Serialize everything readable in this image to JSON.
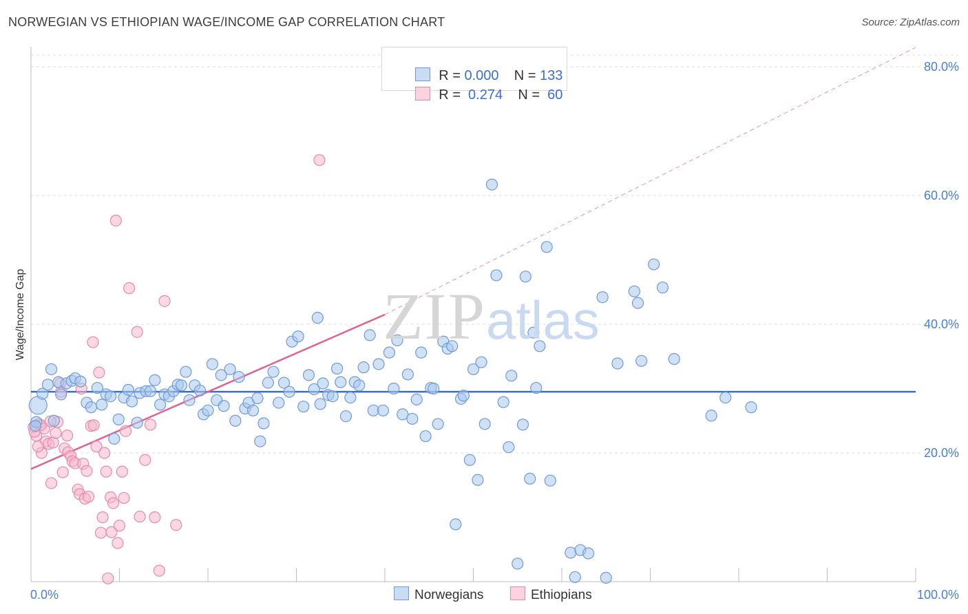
{
  "title": "NORWEGIAN VS ETHIOPIAN WAGE/INCOME GAP CORRELATION CHART",
  "source": "Source: ZipAtlas.com",
  "legend": {
    "rows": [
      {
        "r_label": "R = ",
        "r_value": "0.000",
        "n_label": "N = ",
        "n_value": "133",
        "color": "#a9c8ef",
        "border": "#6f9ad6"
      },
      {
        "r_label": "R = ",
        "r_value": " 0.274",
        "n_label": "N = ",
        "n_value": " 60",
        "color": "#f7b8cc",
        "border": "#e58aa8"
      }
    ]
  },
  "watermark": {
    "zip": "ZIP",
    "atlas": "atlas"
  },
  "chart_data": {
    "type": "scatter",
    "title": "NORWEGIAN VS ETHIOPIAN WAGE/INCOME GAP CORRELATION CHART",
    "xlabel": "",
    "ylabel": "Wage/Income Gap",
    "xlim": [
      0,
      100
    ],
    "ylim": [
      0,
      80
    ],
    "x_tick_labels": [
      "0.0%",
      "100.0%"
    ],
    "y_ticks": [
      20,
      40,
      60,
      80
    ],
    "y_tick_labels": [
      "20.0%",
      "40.0%",
      "60.0%",
      "80.0%"
    ],
    "grid": true,
    "legend_position": "top-center",
    "series": [
      {
        "name": "Norwegians",
        "color": "#a9c8ef",
        "stroke": "#6f9ad6",
        "trend": {
          "x": [
            0,
            100
          ],
          "y": [
            29.5,
            29.5
          ],
          "color": "#2f6fcf"
        },
        "points": [
          [
            0.8,
            27.4
          ],
          [
            0.6,
            24.8
          ],
          [
            1.3,
            29.2
          ],
          [
            1.9,
            30.6
          ],
          [
            2.3,
            33.0
          ],
          [
            3.1,
            31.0
          ],
          [
            3.4,
            29.1
          ],
          [
            4.0,
            30.8
          ],
          [
            4.6,
            31.2
          ],
          [
            5.0,
            31.6
          ],
          [
            5.6,
            31.1
          ],
          [
            6.3,
            27.8
          ],
          [
            6.8,
            27.1
          ],
          [
            7.5,
            30.1
          ],
          [
            8.0,
            27.5
          ],
          [
            8.5,
            29.1
          ],
          [
            9.0,
            28.8
          ],
          [
            9.4,
            22.2
          ],
          [
            9.9,
            25.2
          ],
          [
            10.5,
            28.6
          ],
          [
            11.0,
            29.8
          ],
          [
            11.4,
            28.0
          ],
          [
            12.0,
            24.7
          ],
          [
            12.3,
            29.3
          ],
          [
            13.0,
            29.6
          ],
          [
            13.5,
            29.6
          ],
          [
            14.0,
            31.3
          ],
          [
            14.6,
            27.5
          ],
          [
            15.1,
            29.1
          ],
          [
            15.6,
            28.8
          ],
          [
            16.1,
            29.6
          ],
          [
            16.6,
            30.6
          ],
          [
            17.0,
            30.5
          ],
          [
            17.5,
            32.6
          ],
          [
            17.9,
            28.2
          ],
          [
            18.5,
            30.5
          ],
          [
            19.1,
            29.7
          ],
          [
            19.5,
            26.0
          ],
          [
            20.0,
            26.6
          ],
          [
            20.5,
            33.8
          ],
          [
            21.0,
            28.2
          ],
          [
            21.5,
            32.1
          ],
          [
            21.8,
            27.3
          ],
          [
            22.5,
            33.0
          ],
          [
            23.1,
            25.0
          ],
          [
            23.5,
            31.8
          ],
          [
            24.2,
            26.9
          ],
          [
            24.6,
            27.8
          ],
          [
            25.1,
            26.6
          ],
          [
            25.6,
            28.5
          ],
          [
            25.9,
            21.8
          ],
          [
            26.3,
            24.6
          ],
          [
            26.8,
            30.9
          ],
          [
            27.4,
            32.6
          ],
          [
            28.0,
            27.8
          ],
          [
            28.6,
            30.9
          ],
          [
            29.2,
            29.5
          ],
          [
            29.5,
            37.3
          ],
          [
            30.2,
            38.1
          ],
          [
            30.8,
            27.2
          ],
          [
            31.4,
            32.1
          ],
          [
            32.0,
            29.9
          ],
          [
            32.4,
            41.0
          ],
          [
            32.7,
            27.6
          ],
          [
            33.0,
            30.8
          ],
          [
            33.6,
            29.0
          ],
          [
            34.1,
            28.8
          ],
          [
            34.6,
            33.1
          ],
          [
            35.0,
            31.0
          ],
          [
            35.6,
            25.7
          ],
          [
            36.1,
            28.6
          ],
          [
            36.6,
            31.0
          ],
          [
            37.1,
            30.5
          ],
          [
            37.6,
            33.3
          ],
          [
            38.3,
            38.3
          ],
          [
            38.7,
            26.6
          ],
          [
            39.3,
            33.8
          ],
          [
            39.8,
            26.6
          ],
          [
            40.5,
            35.6
          ],
          [
            41.0,
            30.0
          ],
          [
            41.4,
            37.5
          ],
          [
            42.0,
            26.0
          ],
          [
            42.6,
            32.2
          ],
          [
            43.1,
            25.3
          ],
          [
            43.6,
            28.3
          ],
          [
            44.1,
            35.6
          ],
          [
            44.6,
            22.6
          ],
          [
            45.2,
            30.1
          ],
          [
            45.5,
            30.0
          ],
          [
            46.0,
            24.5
          ],
          [
            46.6,
            37.3
          ],
          [
            47.1,
            36.2
          ],
          [
            47.6,
            36.6
          ],
          [
            48.0,
            8.9
          ],
          [
            48.6,
            28.4
          ],
          [
            48.9,
            28.9
          ],
          [
            49.6,
            18.9
          ],
          [
            50.0,
            33.0
          ],
          [
            50.5,
            15.8
          ],
          [
            50.9,
            34.1
          ],
          [
            51.3,
            24.5
          ],
          [
            52.1,
            61.7
          ],
          [
            52.6,
            47.6
          ],
          [
            53.4,
            27.9
          ],
          [
            54.0,
            20.9
          ],
          [
            54.3,
            32.0
          ],
          [
            55.0,
            2.8
          ],
          [
            55.6,
            24.4
          ],
          [
            55.9,
            47.4
          ],
          [
            56.4,
            16.0
          ],
          [
            56.8,
            38.7
          ],
          [
            57.1,
            30.1
          ],
          [
            57.5,
            36.6
          ],
          [
            58.3,
            52.0
          ],
          [
            58.7,
            15.7
          ],
          [
            61.0,
            4.5
          ],
          [
            61.5,
            0.7
          ],
          [
            62.1,
            4.9
          ],
          [
            63.0,
            4.4
          ],
          [
            64.6,
            44.2
          ],
          [
            65.0,
            0.6
          ],
          [
            66.3,
            33.9
          ],
          [
            68.2,
            45.1
          ],
          [
            68.6,
            43.3
          ],
          [
            69.0,
            34.3
          ],
          [
            70.4,
            49.3
          ],
          [
            71.4,
            45.7
          ],
          [
            72.7,
            34.6
          ],
          [
            76.9,
            25.8
          ],
          [
            78.5,
            28.6
          ],
          [
            81.4,
            27.1
          ],
          [
            0.5,
            24.2
          ],
          [
            2.6,
            25.0
          ]
        ],
        "sizes": [
          24,
          14,
          14,
          14,
          14,
          14,
          14,
          14,
          14,
          14,
          14,
          14,
          14,
          14,
          14,
          14,
          14,
          14,
          14,
          14,
          14,
          14,
          14,
          14,
          14,
          14,
          14,
          14,
          14,
          14,
          14,
          14,
          14,
          14,
          14,
          14,
          14,
          14,
          14,
          14,
          14,
          14,
          14,
          14,
          14,
          14,
          14,
          14,
          14,
          14,
          14,
          14,
          14,
          14,
          14,
          14,
          14,
          14,
          14,
          14,
          14,
          14,
          14,
          14,
          14,
          14,
          14,
          14,
          14,
          14,
          14,
          14,
          14,
          14,
          14,
          14,
          14,
          14,
          14,
          14,
          14,
          14,
          14,
          14,
          14,
          14,
          14,
          14,
          14,
          14,
          14,
          14,
          14,
          14,
          14,
          14,
          14,
          14,
          14,
          14,
          14,
          14,
          14,
          14,
          14,
          14,
          14,
          14,
          14,
          14,
          14,
          14,
          14,
          14,
          14,
          14,
          14,
          14,
          14,
          14,
          14,
          14,
          14,
          14,
          14,
          14,
          14,
          14,
          14,
          14,
          14,
          14,
          14
        ]
      },
      {
        "name": "Ethiopians",
        "color": "#f7b8cc",
        "stroke": "#e58aa8",
        "trend": {
          "x": [
            0,
            40
          ],
          "y": [
            17.5,
            41.5
          ],
          "dashed_to": [
            100,
            83
          ],
          "color": "#e0608e"
        },
        "points": [
          [
            0.3,
            24.0
          ],
          [
            0.6,
            22.7
          ],
          [
            0.9,
            24.5
          ],
          [
            1.2,
            20.0
          ],
          [
            1.5,
            23.8
          ],
          [
            1.7,
            21.8
          ],
          [
            2.0,
            21.4
          ],
          [
            2.3,
            15.3
          ],
          [
            2.5,
            21.6
          ],
          [
            2.8,
            23.1
          ],
          [
            3.0,
            24.8
          ],
          [
            3.3,
            30.8
          ],
          [
            3.6,
            17.0
          ],
          [
            3.8,
            20.7
          ],
          [
            4.1,
            22.7
          ],
          [
            4.2,
            20.1
          ],
          [
            4.5,
            19.5
          ],
          [
            4.7,
            18.7
          ],
          [
            5.0,
            18.4
          ],
          [
            5.3,
            14.3
          ],
          [
            5.5,
            13.6
          ],
          [
            5.7,
            30.0
          ],
          [
            5.9,
            18.3
          ],
          [
            6.1,
            12.9
          ],
          [
            6.3,
            17.2
          ],
          [
            6.5,
            13.2
          ],
          [
            6.8,
            24.2
          ],
          [
            7.0,
            37.2
          ],
          [
            7.1,
            24.3
          ],
          [
            7.4,
            21.0
          ],
          [
            7.7,
            32.5
          ],
          [
            7.9,
            7.6
          ],
          [
            8.1,
            10.0
          ],
          [
            8.3,
            20.0
          ],
          [
            8.5,
            17.1
          ],
          [
            8.7,
            0.5
          ],
          [
            9.0,
            13.1
          ],
          [
            9.1,
            7.7
          ],
          [
            9.3,
            12.2
          ],
          [
            9.6,
            56.1
          ],
          [
            9.8,
            6.0
          ],
          [
            10.0,
            8.7
          ],
          [
            10.3,
            17.1
          ],
          [
            10.5,
            13.0
          ],
          [
            10.7,
            23.4
          ],
          [
            11.1,
            45.6
          ],
          [
            12.0,
            38.8
          ],
          [
            12.3,
            10.1
          ],
          [
            12.9,
            18.9
          ],
          [
            13.5,
            24.4
          ],
          [
            14.0,
            10.0
          ],
          [
            14.5,
            1.7
          ],
          [
            15.1,
            43.6
          ],
          [
            16.4,
            8.8
          ],
          [
            0.8,
            21.0
          ],
          [
            1.1,
            24.3
          ],
          [
            32.6,
            65.5
          ],
          [
            2.2,
            24.9
          ],
          [
            3.4,
            29.5
          ],
          [
            0.4,
            23.3
          ]
        ],
        "sizes": [
          14,
          14,
          14,
          14,
          14,
          14,
          14,
          14,
          14,
          14,
          14,
          14,
          14,
          14,
          14,
          14,
          14,
          14,
          14,
          14,
          14,
          14,
          14,
          14,
          14,
          14,
          14,
          14,
          14,
          14,
          14,
          14,
          14,
          14,
          14,
          14,
          14,
          14,
          14,
          14,
          14,
          14,
          14,
          14,
          14,
          14,
          14,
          14,
          14,
          14,
          14,
          14,
          14,
          14,
          14,
          14,
          14,
          14,
          14,
          14
        ]
      }
    ]
  }
}
